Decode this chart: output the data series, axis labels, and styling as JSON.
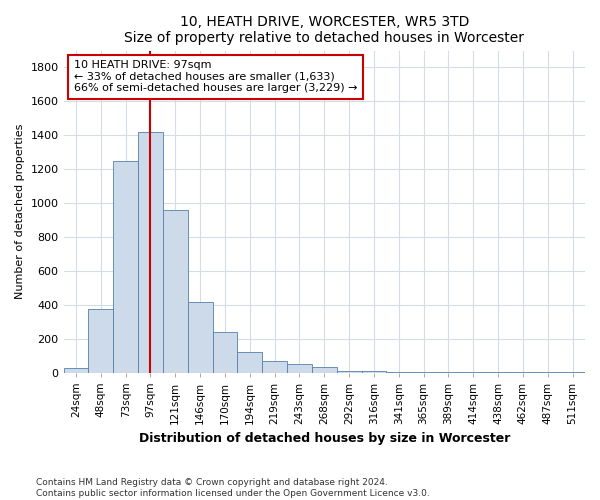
{
  "title": "10, HEATH DRIVE, WORCESTER, WR5 3TD",
  "subtitle": "Size of property relative to detached houses in Worcester",
  "xlabel": "Distribution of detached houses by size in Worcester",
  "ylabel": "Number of detached properties",
  "bar_color": "#ccdaea",
  "bar_edgecolor": "#5580aa",
  "categories": [
    "24sqm",
    "48sqm",
    "73sqm",
    "97sqm",
    "121sqm",
    "146sqm",
    "170sqm",
    "194sqm",
    "219sqm",
    "243sqm",
    "268sqm",
    "292sqm",
    "316sqm",
    "341sqm",
    "365sqm",
    "389sqm",
    "414sqm",
    "438sqm",
    "462sqm",
    "487sqm",
    "511sqm"
  ],
  "values": [
    25,
    375,
    1250,
    1420,
    960,
    415,
    240,
    120,
    65,
    50,
    30,
    10,
    10,
    5,
    3,
    1,
    1,
    1,
    1,
    1,
    1
  ],
  "vline_color": "#cc0000",
  "vline_index": 3,
  "annotation_title": "10 HEATH DRIVE: 97sqm",
  "annotation_line1": "← 33% of detached houses are smaller (1,633)",
  "annotation_line2": "66% of semi-detached houses are larger (3,229) →",
  "annotation_box_edgecolor": "#cc0000",
  "ylim": [
    0,
    1900
  ],
  "yticks": [
    0,
    200,
    400,
    600,
    800,
    1000,
    1200,
    1400,
    1600,
    1800
  ],
  "footer1": "Contains HM Land Registry data © Crown copyright and database right 2024.",
  "footer2": "Contains public sector information licensed under the Open Government Licence v3.0.",
  "background_color": "#ffffff",
  "grid_color": "#d4dce8"
}
